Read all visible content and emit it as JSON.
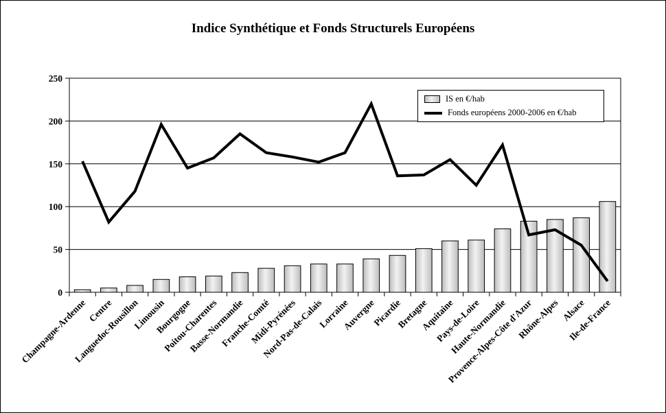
{
  "chart_data": {
    "type": "bar-line-combo",
    "title": "Indice Synthétique et Fonds Structurels Européens",
    "categories": [
      "Champagne-Ardenne",
      "Centre",
      "Languedoc-Rousillon",
      "Limousin",
      "Bourgogne",
      "Poitou-Charentes",
      "Basse-Normandie",
      "Franche-Comté",
      "Midi-Pyrénées",
      "Nord-Pas-de-Calais",
      "Lorraine",
      "Auvergne",
      "Picardie",
      "Bretagne",
      "Aquitaine",
      "Pays-de-Loire",
      "Haute-Normandie",
      "Provence-Alpes-Côte d'Azur",
      "Rhône-Alpes",
      "Alsace",
      "Ile-de-France"
    ],
    "series": [
      {
        "name": "IS en €/hab",
        "type": "bar",
        "values": [
          3,
          5,
          8,
          15,
          18,
          19,
          23,
          28,
          31,
          33,
          33,
          39,
          43,
          51,
          60,
          61,
          74,
          83,
          85,
          87,
          106
        ]
      },
      {
        "name": "Fonds européens 2000-2006 en €/hab",
        "type": "line",
        "values": [
          153,
          82,
          118,
          196,
          145,
          157,
          185,
          163,
          158,
          152,
          163,
          220,
          136,
          137,
          155,
          125,
          172,
          67,
          73,
          55,
          13
        ]
      }
    ],
    "ylim": [
      0,
      250
    ],
    "ytick_interval": 50,
    "yticks": [
      0,
      50,
      100,
      150,
      200,
      250
    ],
    "grid": true,
    "legend_position": "inside-top-right",
    "colors": {
      "bar_fill": "#d9d9d9",
      "bar_border": "#000000",
      "line": "#000000",
      "background": "#ffffff"
    }
  }
}
